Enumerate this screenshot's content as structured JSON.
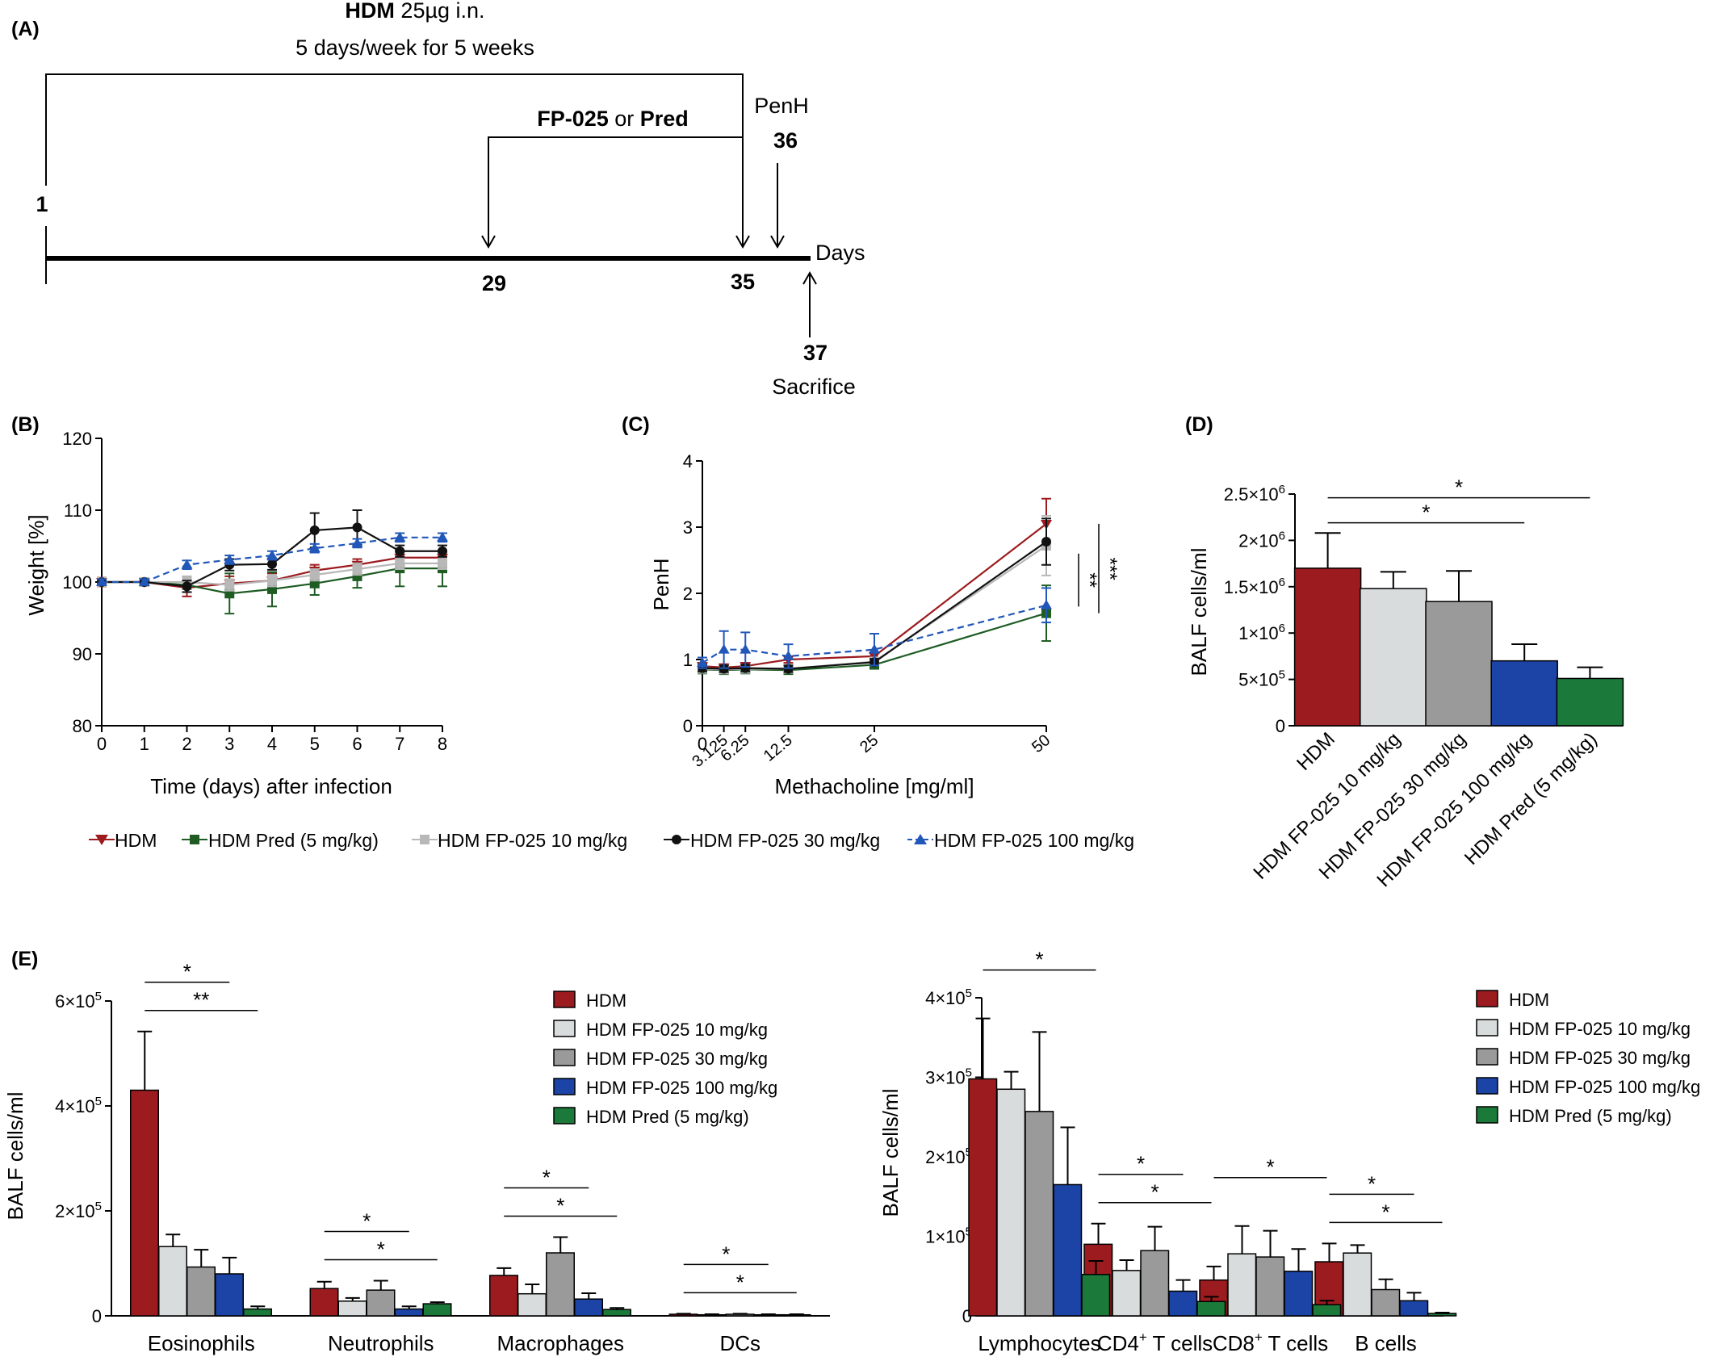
{
  "colors": {
    "HDM": "#9c1b1f",
    "FP10": "#d9dcdd",
    "FP30": "#9a9a9a",
    "FP100": "#1c44a6",
    "Pred": "#1b7a3a",
    "Pred_line": "#1e5c24",
    "FP10_line": "#b8b8b8",
    "FP30_line": "#111111",
    "FP100_line": "#2157b8"
  },
  "panelA": {
    "label": "(A)",
    "hdm_bold": "HDM",
    "hdm_rest": " 25µg i.n.",
    "schedule": "5 days/week for 5 weeks",
    "treat_a": "FP-025",
    "treat_or": " or ",
    "treat_b": "Pred",
    "penh": "PenH",
    "day1": "1",
    "day29": "29",
    "day35": "35",
    "day36": "36",
    "day37": "37",
    "days": "Days",
    "sacrifice": "Sacrifice"
  },
  "legend_line": {
    "HDM": "HDM",
    "Pred": "HDM Pred (5 mg/kg)",
    "FP10": "HDM FP-025 10 mg/kg",
    "FP30": "HDM FP-025 30 mg/kg",
    "FP100": "HDM FP-025 100 mg/kg"
  },
  "legend_bar": [
    "HDM",
    "HDM FP-025 10 mg/kg",
    "HDM FP-025 30 mg/kg",
    "HDM FP-025 100 mg/kg",
    "HDM Pred (5 mg/kg)"
  ],
  "chart_data": [
    {
      "panel": "(B)",
      "type": "line",
      "xlabel": "Time (days) after infection",
      "ylabel": "Weight [%]",
      "ylim": [
        80,
        120
      ],
      "yticks": [
        80,
        90,
        100,
        110,
        120
      ],
      "xticks": [
        0,
        1,
        2,
        3,
        4,
        5,
        6,
        7,
        8
      ],
      "x": [
        0,
        1,
        2,
        3,
        4,
        5,
        6,
        7,
        8
      ],
      "series": [
        {
          "name": "HDM",
          "key": "HDM",
          "marker": "tri-down",
          "dashed": false,
          "values": [
            100,
            100,
            99.2,
            99.8,
            100.2,
            101.6,
            102.4,
            103.4,
            103.4
          ],
          "err": [
            0.6,
            0.5,
            1.2,
            1.0,
            1.0,
            0.8,
            0.8,
            0.8,
            0.8
          ]
        },
        {
          "name": "HDM Pred (5 mg/kg)",
          "key": "Pred",
          "marker": "square",
          "dashed": false,
          "values": [
            100,
            100,
            99.6,
            98.4,
            99.0,
            99.8,
            100.8,
            101.9,
            101.9
          ],
          "err": [
            0.5,
            0.5,
            1.0,
            2.8,
            2.4,
            1.6,
            1.6,
            2.5,
            2.5
          ]
        },
        {
          "name": "HDM FP-025 10 mg/kg",
          "key": "FP10",
          "marker": "square",
          "dashed": false,
          "values": [
            100,
            100,
            100,
            99.6,
            100.2,
            101.0,
            101.8,
            102.6,
            102.6
          ],
          "err": [
            0.4,
            0.4,
            0.8,
            0.8,
            0.8,
            0.8,
            0.8,
            0.8,
            0.8
          ]
        },
        {
          "name": "HDM FP-025 30 mg/kg",
          "key": "FP30",
          "marker": "circle",
          "dashed": false,
          "values": [
            100,
            100,
            99.4,
            102.4,
            102.5,
            107.2,
            107.6,
            104.3,
            104.3
          ],
          "err": [
            0.4,
            0.4,
            0.8,
            0.8,
            0.8,
            2.4,
            2.4,
            0.8,
            0.8
          ]
        },
        {
          "name": "HDM FP-025 100 mg/kg",
          "key": "FP100",
          "marker": "tri-up",
          "dashed": true,
          "values": [
            100,
            100,
            102.4,
            103.1,
            103.7,
            104.7,
            105.4,
            106.2,
            106.2
          ],
          "err": [
            0.4,
            0.4,
            0.6,
            0.6,
            0.6,
            0.6,
            0.6,
            0.6,
            0.6
          ]
        }
      ]
    },
    {
      "panel": "(C)",
      "type": "line",
      "xlabel": "Methacholine [mg/ml]",
      "ylabel": "PenH",
      "ylim": [
        0,
        4
      ],
      "yticks": [
        0,
        1,
        2,
        3,
        4
      ],
      "xticks": [
        "0",
        "3.125",
        "6.25",
        "12.5",
        "25",
        "50"
      ],
      "x": [
        0,
        3.125,
        6.25,
        12.5,
        25,
        50
      ],
      "significance": [
        "**",
        "***"
      ],
      "series": [
        {
          "name": "HDM",
          "key": "HDM",
          "marker": "tri-down",
          "dashed": false,
          "values": [
            0.9,
            0.88,
            0.9,
            1.0,
            1.05,
            3.05
          ],
          "err": [
            0.05,
            0.05,
            0.05,
            0.05,
            0.06,
            0.38
          ]
        },
        {
          "name": "HDM Pred (5 mg/kg)",
          "key": "Pred",
          "marker": "square",
          "dashed": false,
          "values": [
            0.85,
            0.84,
            0.85,
            0.84,
            0.92,
            1.7
          ],
          "err": [
            0.05,
            0.05,
            0.05,
            0.05,
            0.05,
            0.42
          ]
        },
        {
          "name": "HDM FP-025 10 mg/kg",
          "key": "FP10",
          "marker": "square",
          "dashed": false,
          "values": [
            0.86,
            0.85,
            0.86,
            0.86,
            0.97,
            2.72
          ],
          "err": [
            0.05,
            0.05,
            0.05,
            0.05,
            0.05,
            0.45
          ]
        },
        {
          "name": "HDM FP-025 30 mg/kg",
          "key": "FP30",
          "marker": "circle",
          "dashed": false,
          "values": [
            0.87,
            0.86,
            0.87,
            0.86,
            0.96,
            2.78
          ],
          "err": [
            0.05,
            0.05,
            0.05,
            0.05,
            0.05,
            0.35
          ]
        },
        {
          "name": "HDM FP-025 100 mg/kg",
          "key": "FP100",
          "marker": "tri-up",
          "dashed": true,
          "values": [
            0.95,
            1.15,
            1.15,
            1.05,
            1.15,
            1.82
          ],
          "err": [
            0.08,
            0.28,
            0.26,
            0.18,
            0.24,
            0.26
          ]
        }
      ]
    },
    {
      "panel": "(D)",
      "type": "bar",
      "ylabel": "BALF cells/ml",
      "ylim": [
        0,
        2500000
      ],
      "ytick_values": [
        0,
        500000,
        1000000,
        1500000,
        2000000,
        2500000
      ],
      "ytick_base": [
        "0",
        "5×10",
        "1×10",
        "1.5×10",
        "2×10",
        "2.5×10"
      ],
      "ytick_exp": [
        "",
        "5",
        "6",
        "6",
        "6",
        "6"
      ],
      "categories": [
        "HDM",
        "HDM FP-025 10 mg/kg",
        "HDM FP-025 30 mg/kg",
        "HDM FP-025 100 mg/kg",
        "HDM Pred (5 mg/kg)"
      ],
      "keys": [
        "HDM",
        "FP10",
        "FP30",
        "FP100",
        "Pred"
      ],
      "values": [
        1700000,
        1480000,
        1340000,
        700000,
        510000
      ],
      "err": [
        380000,
        180000,
        330000,
        180000,
        120000
      ],
      "brackets": [
        {
          "from": 0,
          "to": 4,
          "label": "*"
        },
        {
          "from": 0,
          "to": 3,
          "label": "*"
        }
      ]
    },
    {
      "panel": "(E)",
      "type": "bar",
      "ylabel": "BALF cells/ml",
      "ylim": [
        0,
        600000
      ],
      "ytick_values": [
        0,
        200000,
        400000,
        600000
      ],
      "ytick_base": [
        "0",
        "2×10",
        "4×10",
        "6×10"
      ],
      "ytick_exp": [
        "",
        "5",
        "5",
        "5"
      ],
      "categories": [
        "Eosinophils",
        "Neutrophils",
        "Macrophages",
        "DCs"
      ],
      "series": [
        {
          "name": "HDM",
          "key": "HDM",
          "values": [
            430000,
            52000,
            77000,
            3000
          ],
          "err": [
            112000,
            13000,
            14000,
            1000
          ]
        },
        {
          "name": "HDM FP-025 10 mg/kg",
          "key": "FP10",
          "values": [
            132000,
            28000,
            42000,
            2000
          ],
          "err": [
            23000,
            6000,
            18000,
            1000
          ]
        },
        {
          "name": "HDM FP-025 30 mg/kg",
          "key": "FP30",
          "values": [
            93000,
            49000,
            120000,
            3000
          ],
          "err": [
            33000,
            18000,
            30000,
            1000
          ]
        },
        {
          "name": "HDM FP-025 100 mg/kg",
          "key": "FP100",
          "values": [
            80000,
            13000,
            32000,
            2000
          ],
          "err": [
            31000,
            5000,
            11000,
            1000
          ]
        },
        {
          "name": "HDM Pred (5 mg/kg)",
          "key": "Pred",
          "values": [
            13000,
            23000,
            12000,
            2000
          ],
          "err": [
            5000,
            3000,
            3000,
            1000
          ]
        }
      ],
      "brackets": [
        {
          "group": 0,
          "from": 0,
          "to": 3,
          "label": "*"
        },
        {
          "group": 0,
          "from": 0,
          "to": 4,
          "label": "**"
        },
        {
          "group": 1,
          "from": 0,
          "to": 3,
          "label": "*"
        },
        {
          "group": 1,
          "from": 0,
          "to": 4,
          "label": "*"
        },
        {
          "group": 2,
          "from": 0,
          "to": 3,
          "label": "*"
        },
        {
          "group": 2,
          "from": 0,
          "to": 4,
          "label": "*"
        },
        {
          "group": 3,
          "from": 0,
          "to": 3,
          "label": "*"
        },
        {
          "group": 3,
          "from": 0,
          "to": 4,
          "label": "*"
        }
      ]
    },
    {
      "panel": "(E)-right",
      "type": "bar",
      "ylabel": "BALF cells/ml",
      "ylim": [
        0,
        400000
      ],
      "ytick_values": [
        0,
        100000,
        200000,
        300000,
        400000
      ],
      "ytick_base": [
        "0",
        "1×10",
        "2×10",
        "3×10",
        "4×10"
      ],
      "ytick_exp": [
        "",
        "5",
        "5",
        "5",
        "5"
      ],
      "categories": [
        "Lymphocytes",
        "CD4",
        "CD8",
        "B cells"
      ],
      "category_sup": [
        "",
        "+",
        "+",
        ""
      ],
      "category_suffix": [
        "",
        " T cells",
        " T cells",
        ""
      ],
      "series": [
        {
          "name": "HDM",
          "key": "HDM",
          "values": [
            298000,
            90000,
            45000,
            68000
          ],
          "err": [
            76000,
            26000,
            17000,
            23000
          ]
        },
        {
          "name": "HDM FP-025 10 mg/kg",
          "key": "FP10",
          "values": [
            285000,
            57000,
            78000,
            79000
          ],
          "err": [
            22000,
            13000,
            35000,
            10000
          ]
        },
        {
          "name": "HDM FP-025 30 mg/kg",
          "key": "FP30",
          "values": [
            257000,
            82000,
            74000,
            33000
          ],
          "err": [
            100000,
            30000,
            33000,
            13000
          ]
        },
        {
          "name": "HDM FP-025 100 mg/kg",
          "key": "FP100",
          "values": [
            165000,
            31000,
            56000,
            19000
          ],
          "err": [
            72000,
            14000,
            28000,
            10000
          ]
        },
        {
          "name": "HDM Pred (5 mg/kg)",
          "key": "Pred",
          "values": [
            52000,
            18000,
            14000,
            3000
          ],
          "err": [
            17000,
            6000,
            5000,
            1000
          ]
        }
      ],
      "brackets": [
        {
          "group": 0,
          "from": 0,
          "to": 4,
          "label": "*"
        },
        {
          "group": 1,
          "from": 0,
          "to": 3,
          "label": "*"
        },
        {
          "group": 1,
          "from": 0,
          "to": 4,
          "label": "*"
        },
        {
          "group": 2,
          "from": 0,
          "to": 4,
          "label": "*"
        },
        {
          "group": 3,
          "from": 0,
          "to": 3,
          "label": "*"
        },
        {
          "group": 3,
          "from": 0,
          "to": 4,
          "label": "*"
        }
      ]
    }
  ]
}
